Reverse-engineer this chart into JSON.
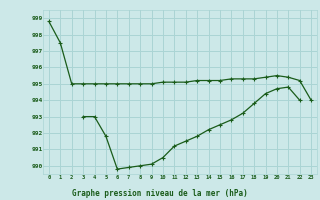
{
  "xlabel": "Graphe pression niveau de la mer (hPa)",
  "background_color": "#cce8e8",
  "grid_color": "#aad4d4",
  "line_color": "#1a5c1a",
  "xlim": [
    -0.5,
    23.5
  ],
  "ylim": [
    989.5,
    999.5
  ],
  "yticks": [
    990,
    991,
    992,
    993,
    994,
    995,
    996,
    997,
    998,
    999
  ],
  "xticks": [
    0,
    1,
    2,
    3,
    4,
    5,
    6,
    7,
    8,
    9,
    10,
    11,
    12,
    13,
    14,
    15,
    16,
    17,
    18,
    19,
    20,
    21,
    22,
    23
  ],
  "series1": [
    998.8,
    997.5,
    995.0,
    995.0,
    995.0,
    995.0,
    995.0,
    995.0,
    995.0,
    995.0,
    995.1,
    995.1,
    995.1,
    995.2,
    995.2,
    995.2,
    995.3,
    995.3,
    995.3,
    995.4,
    995.5,
    995.4,
    995.2,
    994.0
  ],
  "series2": [
    null,
    null,
    null,
    993.0,
    993.0,
    991.8,
    989.8,
    989.9,
    990.0,
    990.1,
    990.5,
    991.2,
    991.5,
    991.8,
    992.2,
    992.5,
    992.8,
    993.2,
    993.8,
    994.4,
    994.7,
    994.8,
    994.0,
    null
  ]
}
